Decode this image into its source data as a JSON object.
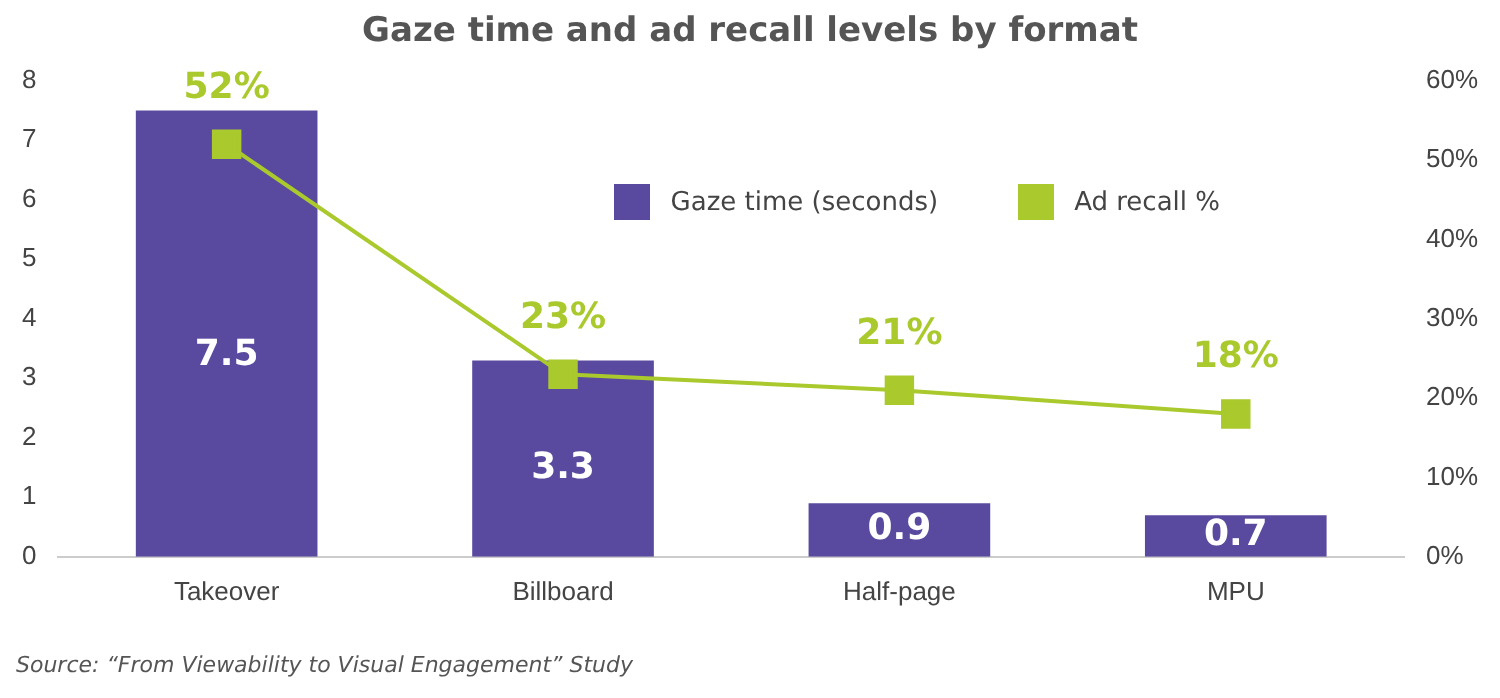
{
  "chart_data": {
    "type": "bar",
    "title": "Gaze time and ad recall levels by format",
    "categories": [
      "Takeover",
      "Billboard",
      "Half-page",
      "MPU"
    ],
    "series": [
      {
        "name": "Gaze time (seconds)",
        "color": "#5a4a9f",
        "values": [
          7.5,
          3.3,
          0.9,
          0.7
        ],
        "value_labels": [
          "7.5",
          "3.3",
          "0.9",
          "0.7"
        ]
      },
      {
        "name": "Ad recall %",
        "type": "line",
        "axis": "y2",
        "color": "#a9c92c",
        "marker": "square",
        "values": [
          52,
          23,
          21,
          18
        ],
        "value_labels": [
          "52%",
          "23%",
          "21%",
          "18%"
        ]
      }
    ],
    "ylim": [
      0,
      8
    ],
    "yticks": [
      0,
      1,
      2,
      3,
      4,
      5,
      6,
      7,
      8
    ],
    "y2lim": [
      0,
      60
    ],
    "y2ticks": [
      {
        "value": 0,
        "label": "0%"
      },
      {
        "value": 10,
        "label": "10%"
      },
      {
        "value": 20,
        "label": "20%"
      },
      {
        "value": 30,
        "label": "30%"
      },
      {
        "value": 40,
        "label": "40%"
      },
      {
        "value": 50,
        "label": "50%"
      },
      {
        "value": 60,
        "label": "60%"
      }
    ],
    "grid": false,
    "legend": "top right",
    "annotations": [
      "Source: “From Viewability to Visual Engagement” Study"
    ]
  }
}
